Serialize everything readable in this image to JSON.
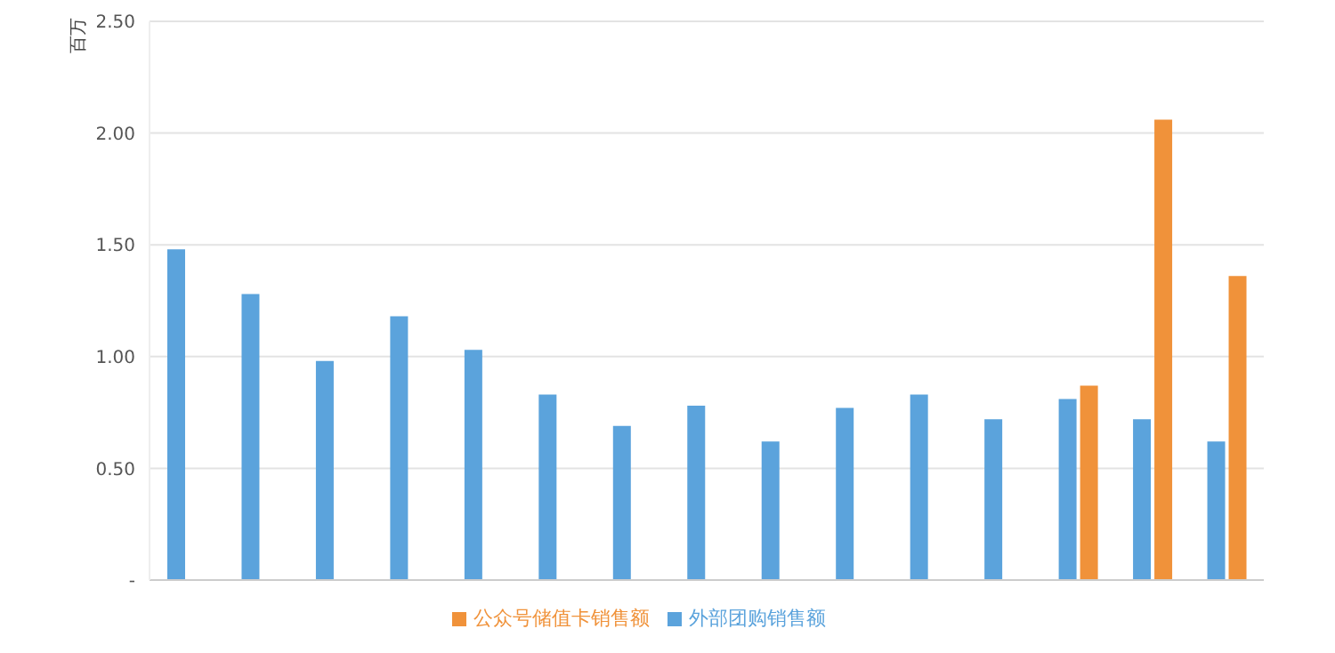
{
  "chart_data": {
    "type": "bar",
    "ylabel": "百万",
    "categories": [
      null,
      null,
      null,
      null,
      null,
      null,
      null,
      null,
      null,
      null,
      null,
      null,
      null,
      null,
      null
    ],
    "series": [
      {
        "name": "外部团购销售额",
        "color": "#5ba3dc",
        "values": [
          1.48,
          1.28,
          0.98,
          1.18,
          1.03,
          0.83,
          0.69,
          0.78,
          0.62,
          0.77,
          0.83,
          0.72,
          0.81,
          0.72,
          0.62
        ]
      },
      {
        "name": "公众号储值卡销售额",
        "color": "#f0923a",
        "values": [
          null,
          null,
          null,
          null,
          null,
          null,
          null,
          null,
          null,
          null,
          null,
          null,
          0.87,
          2.06,
          1.36
        ]
      }
    ],
    "ylim": [
      0,
      2.5
    ],
    "yticks": [
      {
        "value": 0,
        "label": "-"
      },
      {
        "value": 0.5,
        "label": "0.50"
      },
      {
        "value": 1,
        "label": "1.00"
      },
      {
        "value": 1.5,
        "label": "1.50"
      },
      {
        "value": 2,
        "label": "2.00"
      },
      {
        "value": 2.5,
        "label": "2.50"
      }
    ],
    "grid": "y",
    "legend": "bottom"
  }
}
